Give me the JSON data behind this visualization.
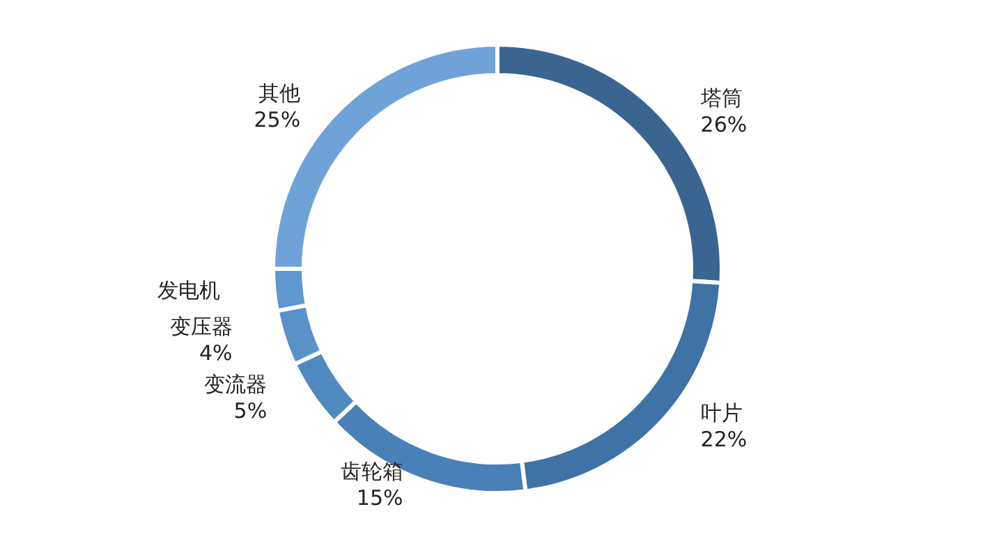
{
  "chart_data": {
    "type": "donut",
    "categories": [
      "塔筒",
      "叶片",
      "齿轮箱",
      "变流器",
      "变压器",
      "发电机",
      "其他"
    ],
    "values": [
      26,
      22,
      15,
      5,
      4,
      3,
      25
    ],
    "value_labels": [
      "26%",
      "22%",
      "15%",
      "5%",
      "4%",
      null,
      "25%"
    ],
    "colors": [
      "#3a6591",
      "#3f72a5",
      "#4a80b8",
      "#5088c0",
      "#5a91c8",
      "#5f97cf",
      "#6fa3d8"
    ]
  }
}
